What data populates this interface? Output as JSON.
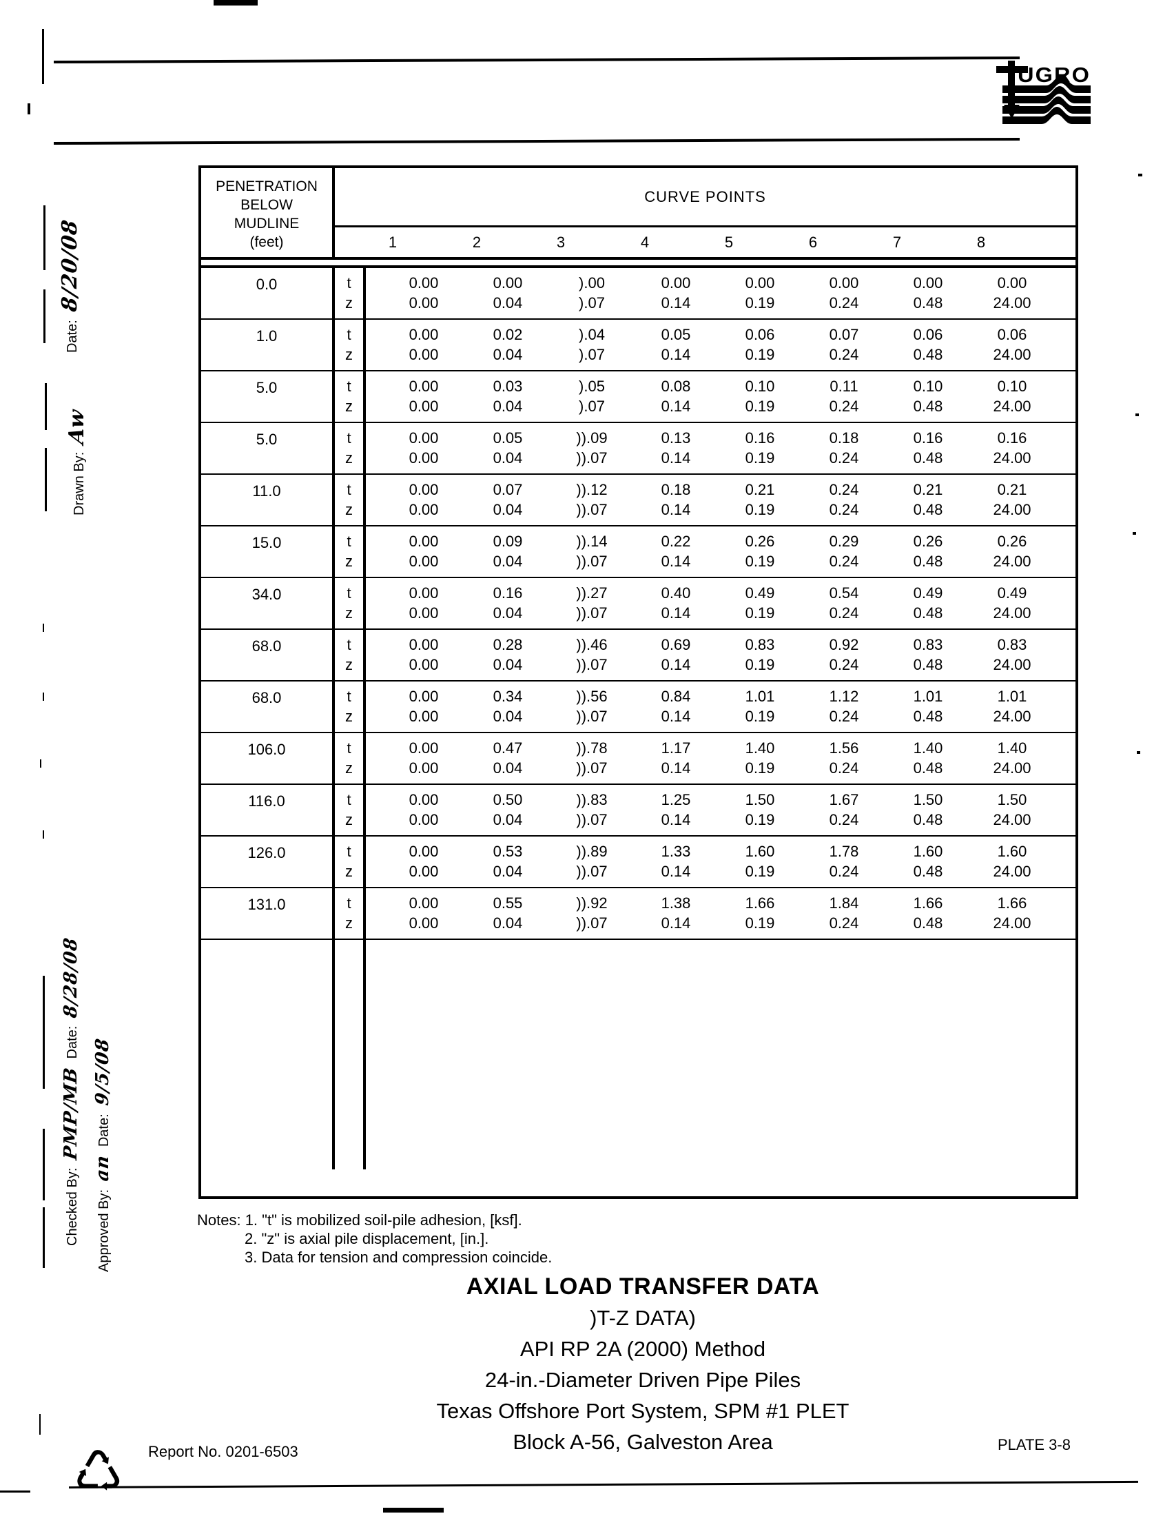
{
  "logo": {
    "brand": "UGRO",
    "icon": "fugro-pile-seismic-logo"
  },
  "margin_notes": {
    "date_label": "Date:",
    "date_value": "8/20/08",
    "drawn_by_label": "Drawn By:",
    "drawn_by_value": "Aw",
    "checked_by_label": "Checked By:",
    "checked_by_value": "PMP/MB",
    "checked_date_label": "Date:",
    "checked_date_value": "8/28/08",
    "approved_by_label": "Approved By:",
    "approved_by_value": "an",
    "approved_date_label": "Date:",
    "approved_date_value": "9/5/08"
  },
  "table": {
    "penetration_header_lines": [
      "PENETRATION",
      "BELOW",
      "MUDLINE",
      "(feet)"
    ],
    "curve_points_header": "CURVE POINTS",
    "point_numbers": [
      "1",
      "2",
      "3",
      "4",
      "5",
      "6",
      "7",
      "8"
    ],
    "t_label": "t",
    "z_label": "z",
    "rows": [
      {
        "penetration": "0.0",
        "t": [
          "0.00",
          "0.00",
          ").00",
          "0.00",
          "0.00",
          "0.00",
          "0.00",
          "0.00"
        ],
        "z": [
          "0.00",
          "0.04",
          ").07",
          "0.14",
          "0.19",
          "0.24",
          "0.48",
          "24.00"
        ]
      },
      {
        "penetration": "1.0",
        "t": [
          "0.00",
          "0.02",
          ").04",
          "0.05",
          "0.06",
          "0.07",
          "0.06",
          "0.06"
        ],
        "z": [
          "0.00",
          "0.04",
          ").07",
          "0.14",
          "0.19",
          "0.24",
          "0.48",
          "24.00"
        ]
      },
      {
        "penetration": "5.0",
        "t": [
          "0.00",
          "0.03",
          ").05",
          "0.08",
          "0.10",
          "0.11",
          "0.10",
          "0.10"
        ],
        "z": [
          "0.00",
          "0.04",
          ").07",
          "0.14",
          "0.19",
          "0.24",
          "0.48",
          "24.00"
        ]
      },
      {
        "penetration": "5.0",
        "t": [
          "0.00",
          "0.05",
          ")).09",
          "0.13",
          "0.16",
          "0.18",
          "0.16",
          "0.16"
        ],
        "z": [
          "0.00",
          "0.04",
          ")).07",
          "0.14",
          "0.19",
          "0.24",
          "0.48",
          "24.00"
        ]
      },
      {
        "penetration": "11.0",
        "t": [
          "0.00",
          "0.07",
          ")).12",
          "0.18",
          "0.21",
          "0.24",
          "0.21",
          "0.21"
        ],
        "z": [
          "0.00",
          "0.04",
          ")).07",
          "0.14",
          "0.19",
          "0.24",
          "0.48",
          "24.00"
        ]
      },
      {
        "penetration": "15.0",
        "t": [
          "0.00",
          "0.09",
          ")).14",
          "0.22",
          "0.26",
          "0.29",
          "0.26",
          "0.26"
        ],
        "z": [
          "0.00",
          "0.04",
          ")).07",
          "0.14",
          "0.19",
          "0.24",
          "0.48",
          "24.00"
        ]
      },
      {
        "penetration": "34.0",
        "t": [
          "0.00",
          "0.16",
          ")).27",
          "0.40",
          "0.49",
          "0.54",
          "0.49",
          "0.49"
        ],
        "z": [
          "0.00",
          "0.04",
          ")).07",
          "0.14",
          "0.19",
          "0.24",
          "0.48",
          "24.00"
        ]
      },
      {
        "penetration": "68.0",
        "t": [
          "0.00",
          "0.28",
          ")).46",
          "0.69",
          "0.83",
          "0.92",
          "0.83",
          "0.83"
        ],
        "z": [
          "0.00",
          "0.04",
          ")).07",
          "0.14",
          "0.19",
          "0.24",
          "0.48",
          "24.00"
        ]
      },
      {
        "penetration": "68.0",
        "t": [
          "0.00",
          "0.34",
          ")).56",
          "0.84",
          "1.01",
          "1.12",
          "1.01",
          "1.01"
        ],
        "z": [
          "0.00",
          "0.04",
          ")).07",
          "0.14",
          "0.19",
          "0.24",
          "0.48",
          "24.00"
        ]
      },
      {
        "penetration": "106.0",
        "t": [
          "0.00",
          "0.47",
          ")).78",
          "1.17",
          "1.40",
          "1.56",
          "1.40",
          "1.40"
        ],
        "z": [
          "0.00",
          "0.04",
          ")).07",
          "0.14",
          "0.19",
          "0.24",
          "0.48",
          "24.00"
        ]
      },
      {
        "penetration": "116.0",
        "t": [
          "0.00",
          "0.50",
          ")).83",
          "1.25",
          "1.50",
          "1.67",
          "1.50",
          "1.50"
        ],
        "z": [
          "0.00",
          "0.04",
          ")).07",
          "0.14",
          "0.19",
          "0.24",
          "0.48",
          "24.00"
        ]
      },
      {
        "penetration": "126.0",
        "t": [
          "0.00",
          "0.53",
          ")).89",
          "1.33",
          "1.60",
          "1.78",
          "1.60",
          "1.60"
        ],
        "z": [
          "0.00",
          "0.04",
          ")).07",
          "0.14",
          "0.19",
          "0.24",
          "0.48",
          "24.00"
        ]
      },
      {
        "penetration": "131.0",
        "t": [
          "0.00",
          "0.55",
          ")).92",
          "1.38",
          "1.66",
          "1.84",
          "1.66",
          "1.66"
        ],
        "z": [
          "0.00",
          "0.04",
          ")).07",
          "0.14",
          "0.19",
          "0.24",
          "0.48",
          "24.00"
        ]
      }
    ]
  },
  "notes": {
    "line1": "Notes: 1.  \"t\" is mobilized soil-pile adhesion, [ksf].",
    "line2": "2.  \"z\" is axial pile displacement, [in.].",
    "line3": "3. Data for tension and compression coincide."
  },
  "title_block": {
    "line1": "AXIAL LOAD TRANSFER DATA",
    "line2": ")T-Z DATA)",
    "line3": "API RP 2A (2000) Method",
    "line4": "24-in.-Diameter Driven Pipe Piles",
    "line5": "Texas Offshore Port System, SPM #1 PLET",
    "line6": "Block A-56, Galveston Area"
  },
  "footer": {
    "report_no": "Report No. 0201-6503",
    "plate": "PLATE 3-8",
    "recycle_glyph": "♺"
  }
}
